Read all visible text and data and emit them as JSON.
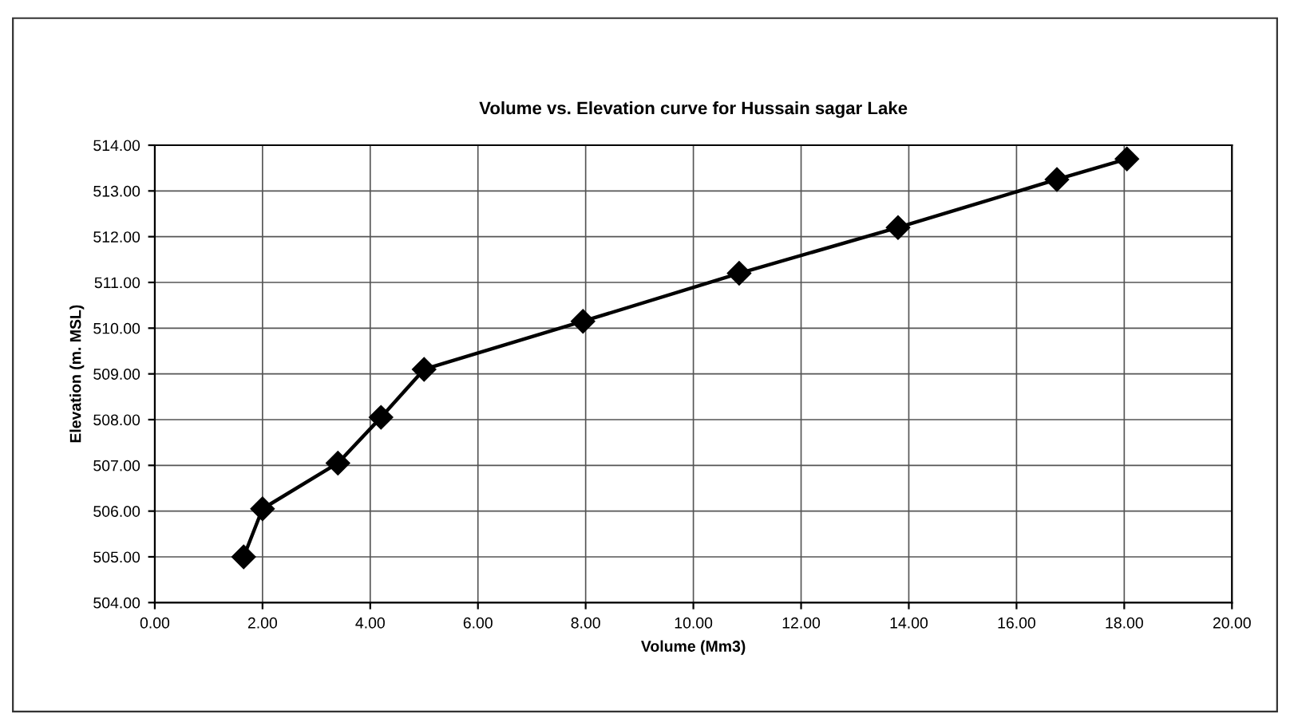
{
  "chart_data": {
    "type": "line",
    "title": "Volume vs. Elevation curve for Hussain sagar Lake",
    "xlabel": "Volume (Mm3)",
    "ylabel": "Elevation (m. MSL)",
    "x": [
      1.65,
      2.0,
      3.4,
      4.2,
      5.0,
      7.95,
      10.85,
      13.8,
      16.75,
      18.05
    ],
    "series": [
      {
        "color": "#000000",
        "values": [
          505.0,
          506.05,
          507.05,
          508.05,
          509.1,
          510.15,
          511.2,
          512.2,
          513.25,
          513.7
        ]
      }
    ],
    "xlim": [
      0,
      20
    ],
    "ylim": [
      504,
      514
    ],
    "xticks": [
      {
        "value": 0,
        "label": "0.00"
      },
      {
        "value": 2,
        "label": "2.00"
      },
      {
        "value": 4,
        "label": "4.00"
      },
      {
        "value": 6,
        "label": "6.00"
      },
      {
        "value": 8,
        "label": "8.00"
      },
      {
        "value": 10,
        "label": "10.00"
      },
      {
        "value": 12,
        "label": "12.00"
      },
      {
        "value": 14,
        "label": "14.00"
      },
      {
        "value": 16,
        "label": "16.00"
      },
      {
        "value": 18,
        "label": "18.00"
      },
      {
        "value": 20,
        "label": "20.00"
      }
    ],
    "yticks": [
      {
        "value": 504,
        "label": "504.00"
      },
      {
        "value": 505,
        "label": "505.00"
      },
      {
        "value": 506,
        "label": "506.00"
      },
      {
        "value": 507,
        "label": "507.00"
      },
      {
        "value": 508,
        "label": "508.00"
      },
      {
        "value": 509,
        "label": "509.00"
      },
      {
        "value": 510,
        "label": "510.00"
      },
      {
        "value": 511,
        "label": "511.00"
      },
      {
        "value": 512,
        "label": "512.00"
      },
      {
        "value": 513,
        "label": "513.00"
      },
      {
        "value": 514,
        "label": "514.00"
      }
    ],
    "grid": true,
    "marker": "diamond",
    "line_style": "solid"
  }
}
